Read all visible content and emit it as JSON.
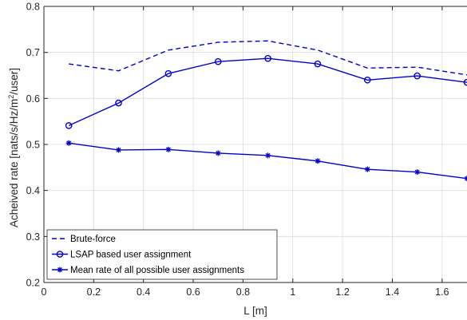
{
  "chart_data": {
    "type": "line",
    "xlabel": "L [m]",
    "ylabel": {
      "main": "Acheived rate [nats/s/Hz/m",
      "sup": "2",
      "tail": "/user]"
    },
    "xlim": [
      0,
      1.7
    ],
    "ylim": [
      0.2,
      0.8
    ],
    "xticks": [
      0,
      0.2,
      0.4,
      0.6,
      0.8,
      1,
      1.2,
      1.4,
      1.6
    ],
    "xtick_labels": [
      "0",
      "0.2",
      "0.4",
      "0.6",
      "0.8",
      "1",
      "1.2",
      "1.4",
      "1.6"
    ],
    "yticks": [
      0.2,
      0.3,
      0.4,
      0.5,
      0.6,
      0.7,
      0.8
    ],
    "ytick_labels": [
      "0.2",
      "0.3",
      "0.4",
      "0.5",
      "0.6",
      "0.7",
      "0.8"
    ],
    "grid": true,
    "legend_position": "bottom-left",
    "series": [
      {
        "name": "Brute-force",
        "style": "dashed",
        "marker": "none",
        "color": "#0000cc",
        "x": [
          0.1,
          0.3,
          0.5,
          0.7,
          0.9,
          1.1,
          1.3,
          1.5,
          1.7
        ],
        "y": [
          0.675,
          0.66,
          0.705,
          0.722,
          0.725,
          0.705,
          0.666,
          0.668,
          0.651
        ]
      },
      {
        "name": "LSAP based user assignment",
        "style": "solid",
        "marker": "circle",
        "color": "#0000cc",
        "x": [
          0.1,
          0.3,
          0.5,
          0.7,
          0.9,
          1.1,
          1.3,
          1.5,
          1.7
        ],
        "y": [
          0.541,
          0.59,
          0.654,
          0.68,
          0.687,
          0.675,
          0.64,
          0.649,
          0.635
        ]
      },
      {
        "name": "Mean rate of all possible user assignments",
        "style": "solid",
        "marker": "asterisk",
        "color": "#0000cc",
        "x": [
          0.1,
          0.3,
          0.5,
          0.7,
          0.9,
          1.1,
          1.3,
          1.5,
          1.7
        ],
        "y": [
          0.503,
          0.488,
          0.489,
          0.481,
          0.476,
          0.464,
          0.446,
          0.44,
          0.426
        ]
      }
    ]
  }
}
